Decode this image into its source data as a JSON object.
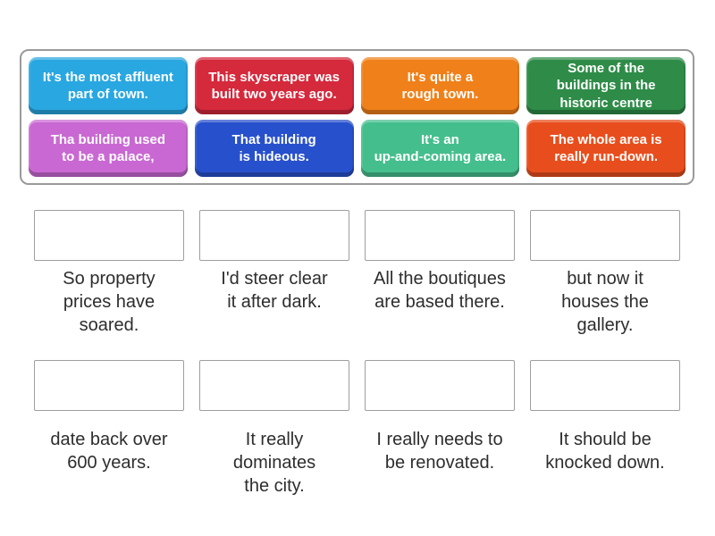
{
  "activity": {
    "type": "match-up",
    "bank": {
      "tiles": [
        {
          "text": "It's the most affluent\npart of town.",
          "color": "#29a7e1"
        },
        {
          "text": "This skyscraper was\nbuilt two years ago.",
          "color": "#d5293c"
        },
        {
          "text": "It's quite a\nrough town.",
          "color": "#f08019"
        },
        {
          "text": "Some of the\nbuildings in the\nhistoric centre",
          "color": "#2e8c48"
        },
        {
          "text": "Tha building used\nto be a palace,",
          "color": "#c968d3"
        },
        {
          "text": "That building\nis hideous.",
          "color": "#2750cc"
        },
        {
          "text": "It's an\nup-and-coming area.",
          "color": "#45be8d"
        },
        {
          "text": "The whole area is\nreally run-down.",
          "color": "#e84e1d"
        }
      ]
    },
    "answer_slots": [
      {
        "clue": "So property\nprices have\nsoared."
      },
      {
        "clue": "I'd steer clear\nit after dark."
      },
      {
        "clue": "All the boutiques\nare based there."
      },
      {
        "clue": "but now it\nhouses the\ngallery."
      },
      {
        "clue": "date back over\n600 years."
      },
      {
        "clue": "It really\ndominates\nthe city."
      },
      {
        "clue": "I really needs to\nbe renovated."
      },
      {
        "clue": "It should be\nknocked down."
      }
    ]
  }
}
